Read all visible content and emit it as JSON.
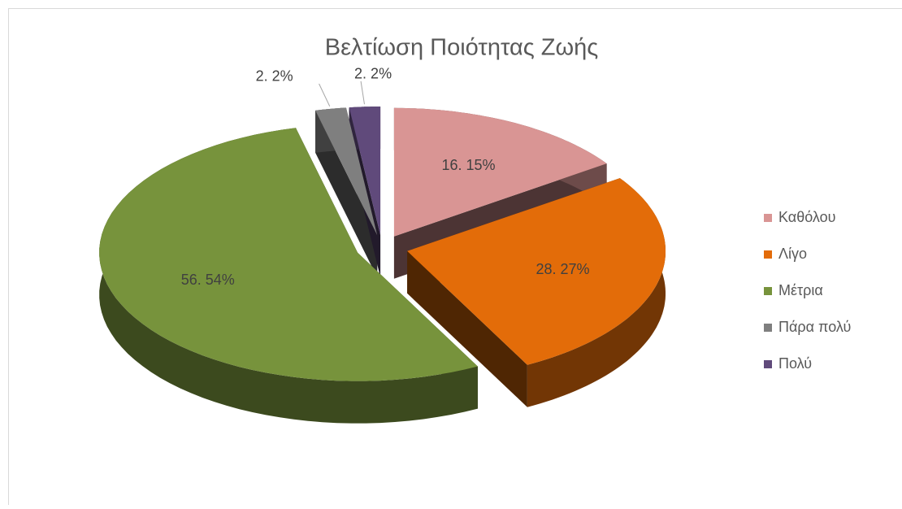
{
  "chart_data": {
    "type": "pie",
    "title": "Βελτίωση Ποιότητας Ζωής",
    "categories": [
      "Καθόλου",
      "Λίγο",
      "Μέτρια",
      "Πάρα πολύ",
      "Πολύ"
    ],
    "values": [
      16,
      28,
      56,
      2,
      2
    ],
    "value_labels": [
      "16. 15%",
      "28. 27%",
      "56. 54%",
      "2. 2%",
      "2. 2%"
    ],
    "colors": [
      "#d99594",
      "#e36c09",
      "#77933c",
      "#7f7f7f",
      "#604a7b"
    ],
    "legend": "right"
  }
}
